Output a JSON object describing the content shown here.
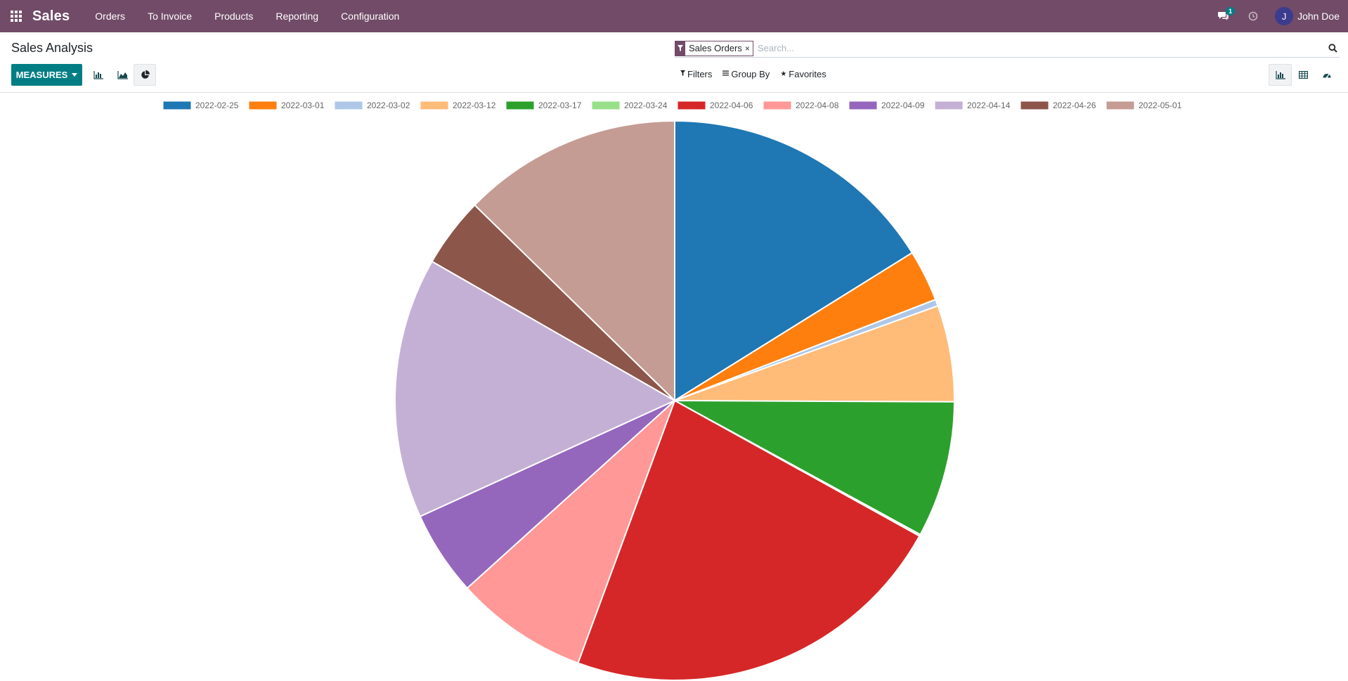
{
  "navbar": {
    "app_name": "Sales",
    "menu": [
      "Orders",
      "To Invoice",
      "Products",
      "Reporting",
      "Configuration"
    ],
    "messages_count": "1",
    "user_initial": "J",
    "user_name": "John Doe",
    "background_color": "#714b67"
  },
  "control_panel": {
    "title": "Sales Analysis",
    "measures_label": "MEASURES",
    "facet_label": "Sales Orders",
    "search_placeholder": "Search...",
    "filters_label": "Filters",
    "group_by_label": "Group By",
    "favorites_label": "Favorites",
    "accent_color": "#017e84",
    "graph_modes": [
      "bar-chart-icon",
      "line-chart-icon",
      "pie-chart-icon"
    ],
    "active_graph_mode": "pie",
    "views": [
      "graph-view-icon",
      "pivot-view-icon",
      "dashboard-view-icon"
    ],
    "active_view": "graph"
  },
  "chart_data": {
    "type": "pie",
    "legend_position": "top",
    "categories": [
      "2022-02-25",
      "2022-03-01",
      "2022-03-02",
      "2022-03-12",
      "2022-03-17",
      "2022-03-24",
      "2022-04-06",
      "2022-04-08",
      "2022-04-09",
      "2022-04-14",
      "2022-04-26",
      "2022-05-01"
    ],
    "values": [
      16.8,
      3.1,
      0.4,
      5.8,
      8.2,
      0.1,
      23.5,
      8.0,
      5.1,
      15.7,
      4.2,
      13.2
    ],
    "colors": [
      "#1f77b4",
      "#ff7f0e",
      "#aec7e8",
      "#ffbb78",
      "#2ca02c",
      "#98df8a",
      "#d62728",
      "#ff9896",
      "#9467bd",
      "#c5b0d5",
      "#8c564b",
      "#c49c94"
    ]
  }
}
